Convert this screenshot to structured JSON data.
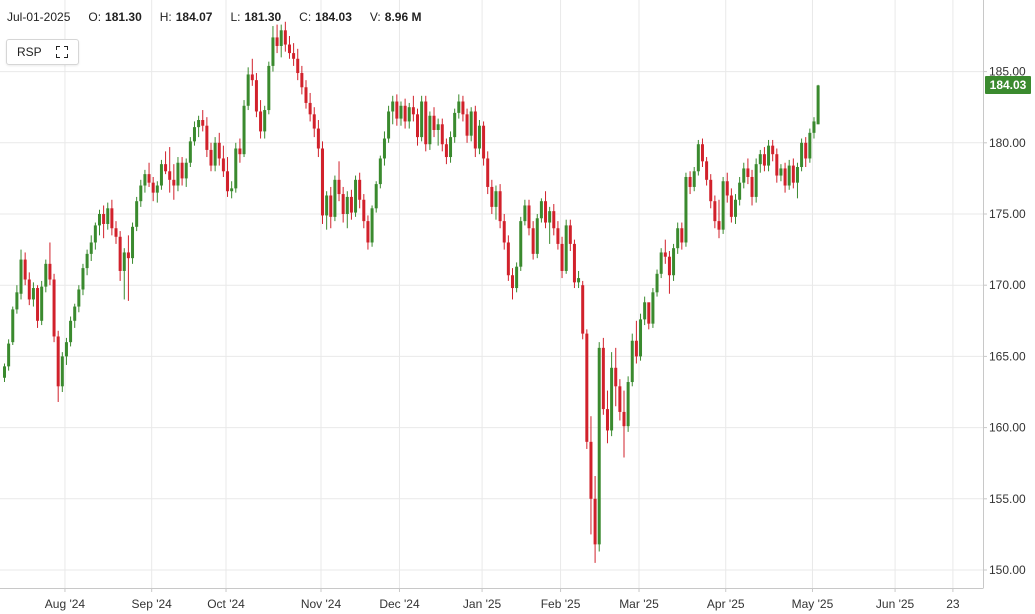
{
  "header": {
    "date": "Jul-01-2025",
    "open_label": "O:",
    "open": "181.30",
    "high_label": "H:",
    "high": "184.07",
    "low_label": "L:",
    "low": "181.30",
    "close_label": "C:",
    "close": "184.03",
    "volume_label": "V:",
    "volume": "8.96 M"
  },
  "symbol": "RSP",
  "icons": {
    "expand": "expand-icon"
  },
  "last_price_tag": "184.03",
  "colors": {
    "up": "#3a8a2e",
    "down": "#d1212b",
    "grid": "#e9e9e9",
    "axis": "#c8c8c8"
  },
  "chart_data": {
    "type": "candlestick",
    "y_range": [
      149,
      189
    ],
    "y_ticks": [
      150,
      155,
      160,
      165,
      170,
      175,
      180,
      185
    ],
    "y_tick_labels": [
      "150.00",
      "155.00",
      "160.00",
      "165.00",
      "170.00",
      "175.00",
      "180.00",
      "185.00"
    ],
    "x_tick_labels": [
      "Aug '24",
      "Sep '24",
      "Oct '24",
      "Nov '24",
      "Dec '24",
      "Jan '25",
      "Feb '25",
      "Mar '25",
      "Apr '25",
      "May '25",
      "Jun '25",
      "23"
    ],
    "x_tick_index": [
      15,
      36,
      54,
      77,
      96,
      116,
      135,
      154,
      175,
      196,
      216,
      230
    ],
    "last_close": 184.03,
    "candles": [
      [
        163.5,
        164.5,
        163.2,
        164.3
      ],
      [
        164.3,
        166.2,
        164.0,
        165.9
      ],
      [
        166.0,
        168.5,
        165.8,
        168.3
      ],
      [
        168.3,
        170.0,
        168.0,
        169.5
      ],
      [
        169.4,
        172.5,
        169.0,
        171.8
      ],
      [
        171.8,
        172.3,
        170.0,
        170.4
      ],
      [
        170.4,
        170.9,
        168.6,
        169.0
      ],
      [
        169.0,
        170.2,
        168.5,
        169.8
      ],
      [
        169.8,
        170.0,
        167.0,
        167.5
      ],
      [
        167.5,
        170.3,
        167.2,
        169.9
      ],
      [
        169.9,
        171.8,
        169.5,
        171.5
      ],
      [
        171.5,
        173.0,
        170.0,
        170.4
      ],
      [
        170.4,
        170.8,
        166.0,
        166.4
      ],
      [
        166.4,
        166.8,
        161.8,
        162.9
      ],
      [
        162.9,
        165.3,
        162.5,
        165.0
      ],
      [
        165.0,
        166.3,
        164.4,
        166.0
      ],
      [
        166.0,
        167.8,
        165.7,
        167.5
      ],
      [
        167.5,
        168.7,
        167.0,
        168.5
      ],
      [
        168.5,
        170.0,
        168.1,
        169.7
      ],
      [
        169.7,
        171.5,
        169.3,
        171.2
      ],
      [
        171.2,
        172.5,
        170.7,
        172.2
      ],
      [
        172.2,
        173.5,
        171.7,
        173.0
      ],
      [
        173.0,
        174.4,
        172.5,
        174.2
      ],
      [
        174.2,
        175.3,
        173.5,
        175.0
      ],
      [
        175.0,
        175.6,
        173.3,
        174.3
      ],
      [
        174.3,
        175.8,
        173.9,
        175.4
      ],
      [
        175.4,
        176.0,
        173.5,
        174.0
      ],
      [
        174.0,
        174.5,
        172.9,
        173.4
      ],
      [
        173.4,
        173.8,
        170.3,
        171.0
      ],
      [
        171.0,
        172.6,
        169.0,
        172.3
      ],
      [
        172.3,
        173.5,
        168.9,
        171.9
      ],
      [
        171.9,
        174.4,
        171.5,
        174.1
      ],
      [
        174.1,
        176.2,
        173.8,
        175.9
      ],
      [
        175.9,
        177.4,
        175.5,
        177.0
      ],
      [
        177.0,
        178.1,
        176.5,
        177.8
      ],
      [
        177.8,
        178.6,
        176.9,
        177.2
      ],
      [
        177.2,
        177.6,
        175.9,
        176.5
      ],
      [
        176.5,
        177.3,
        175.8,
        177.0
      ],
      [
        177.0,
        178.8,
        176.7,
        178.5
      ],
      [
        178.5,
        179.4,
        177.8,
        178.0
      ],
      [
        178.0,
        179.7,
        176.5,
        177.4
      ],
      [
        177.4,
        178.5,
        176.0,
        177.0
      ],
      [
        177.0,
        179.0,
        176.6,
        178.6
      ],
      [
        178.6,
        179.0,
        177.0,
        177.5
      ],
      [
        177.5,
        178.9,
        176.9,
        178.6
      ],
      [
        178.6,
        180.4,
        178.3,
        180.1
      ],
      [
        180.1,
        181.5,
        179.8,
        181.1
      ],
      [
        181.1,
        181.9,
        180.4,
        181.6
      ],
      [
        181.6,
        182.3,
        180.8,
        181.2
      ],
      [
        181.2,
        181.8,
        179.0,
        179.5
      ],
      [
        179.5,
        180.0,
        178.0,
        178.4
      ],
      [
        178.4,
        180.4,
        178.0,
        180.0
      ],
      [
        180.0,
        180.7,
        178.4,
        178.9
      ],
      [
        178.9,
        179.8,
        177.6,
        178.0
      ],
      [
        178.0,
        179.0,
        176.2,
        176.6
      ],
      [
        176.6,
        177.3,
        176.1,
        176.8
      ],
      [
        176.8,
        180.0,
        176.5,
        179.6
      ],
      [
        179.6,
        180.3,
        178.6,
        179.2
      ],
      [
        179.2,
        183.0,
        179.0,
        182.6
      ],
      [
        182.6,
        185.3,
        182.3,
        184.8
      ],
      [
        184.8,
        185.9,
        184.0,
        184.4
      ],
      [
        184.4,
        184.9,
        181.8,
        182.2
      ],
      [
        182.2,
        183.0,
        180.3,
        180.8
      ],
      [
        180.8,
        182.6,
        180.3,
        182.3
      ],
      [
        182.3,
        185.7,
        182.0,
        185.4
      ],
      [
        185.4,
        188.2,
        185.0,
        187.4
      ],
      [
        187.4,
        188.3,
        186.3,
        186.8
      ],
      [
        186.8,
        188.3,
        186.0,
        187.9
      ],
      [
        187.9,
        188.5,
        186.4,
        186.9
      ],
      [
        186.9,
        187.5,
        185.9,
        186.3
      ],
      [
        186.3,
        187.0,
        185.4,
        185.9
      ],
      [
        185.9,
        186.6,
        184.4,
        184.9
      ],
      [
        184.9,
        185.4,
        183.4,
        183.9
      ],
      [
        183.9,
        184.4,
        182.4,
        182.8
      ],
      [
        182.8,
        183.5,
        181.5,
        182.0
      ],
      [
        182.0,
        182.5,
        180.4,
        181.0
      ],
      [
        181.0,
        181.6,
        179.0,
        179.6
      ],
      [
        179.6,
        180.1,
        174.3,
        174.9
      ],
      [
        174.9,
        176.6,
        173.9,
        176.3
      ],
      [
        176.3,
        176.9,
        174.0,
        174.8
      ],
      [
        174.8,
        177.7,
        174.5,
        177.4
      ],
      [
        177.4,
        178.7,
        175.9,
        176.4
      ],
      [
        176.4,
        176.9,
        174.4,
        175.0
      ],
      [
        175.0,
        176.6,
        174.0,
        176.2
      ],
      [
        176.2,
        176.7,
        174.6,
        175.1
      ],
      [
        175.1,
        177.7,
        174.8,
        177.4
      ],
      [
        177.4,
        177.9,
        175.4,
        176.0
      ],
      [
        176.0,
        176.4,
        174.0,
        174.5
      ],
      [
        174.5,
        174.9,
        172.5,
        173.0
      ],
      [
        173.0,
        175.6,
        172.7,
        175.4
      ],
      [
        175.4,
        177.3,
        175.1,
        177.1
      ],
      [
        177.1,
        179.1,
        176.8,
        178.9
      ],
      [
        178.9,
        180.8,
        178.4,
        180.3
      ],
      [
        180.3,
        182.6,
        180.0,
        182.2
      ],
      [
        182.2,
        183.3,
        181.3,
        182.9
      ],
      [
        182.9,
        183.4,
        181.2,
        181.7
      ],
      [
        181.7,
        182.9,
        181.2,
        182.6
      ],
      [
        182.6,
        183.1,
        181.0,
        181.5
      ],
      [
        181.5,
        182.8,
        181.0,
        182.5
      ],
      [
        182.5,
        183.3,
        181.5,
        182.0
      ],
      [
        182.0,
        182.4,
        179.8,
        180.4
      ],
      [
        180.4,
        183.3,
        180.1,
        182.9
      ],
      [
        182.9,
        183.3,
        179.4,
        179.9
      ],
      [
        179.9,
        182.2,
        179.5,
        181.9
      ],
      [
        181.9,
        182.5,
        180.4,
        180.9
      ],
      [
        180.9,
        181.7,
        179.8,
        181.3
      ],
      [
        181.3,
        181.7,
        179.4,
        179.9
      ],
      [
        179.9,
        180.3,
        178.5,
        179.0
      ],
      [
        179.0,
        180.8,
        178.6,
        180.4
      ],
      [
        180.4,
        182.4,
        180.0,
        182.1
      ],
      [
        182.1,
        183.4,
        181.7,
        182.9
      ],
      [
        182.9,
        183.3,
        181.5,
        182.0
      ],
      [
        182.0,
        182.4,
        180.0,
        180.5
      ],
      [
        180.5,
        182.5,
        180.1,
        182.2
      ],
      [
        182.2,
        182.6,
        179.0,
        179.6
      ],
      [
        179.6,
        181.6,
        179.2,
        181.2
      ],
      [
        181.2,
        181.5,
        178.4,
        178.9
      ],
      [
        178.9,
        179.4,
        176.4,
        176.9
      ],
      [
        176.9,
        177.4,
        175.0,
        175.5
      ],
      [
        175.5,
        177.0,
        174.6,
        176.6
      ],
      [
        176.6,
        177.1,
        174.0,
        174.5
      ],
      [
        174.5,
        175.0,
        172.5,
        173.0
      ],
      [
        173.0,
        173.5,
        170.3,
        170.7
      ],
      [
        170.7,
        171.2,
        169.0,
        169.8
      ],
      [
        169.8,
        171.6,
        169.5,
        171.3
      ],
      [
        171.3,
        174.8,
        171.0,
        174.5
      ],
      [
        174.5,
        176.0,
        174.2,
        175.6
      ],
      [
        175.6,
        176.0,
        173.5,
        174.0
      ],
      [
        174.0,
        174.5,
        171.8,
        172.2
      ],
      [
        172.2,
        175.0,
        171.9,
        174.7
      ],
      [
        174.7,
        176.1,
        174.4,
        175.9
      ],
      [
        175.9,
        176.6,
        174.0,
        174.4
      ],
      [
        174.4,
        175.5,
        172.9,
        175.2
      ],
      [
        175.2,
        175.7,
        173.5,
        174.0
      ],
      [
        174.0,
        174.5,
        172.5,
        172.9
      ],
      [
        172.9,
        173.4,
        170.5,
        171.0
      ],
      [
        171.0,
        174.6,
        170.8,
        174.2
      ],
      [
        174.2,
        174.6,
        172.4,
        172.9
      ],
      [
        172.9,
        173.2,
        169.8,
        170.2
      ],
      [
        170.2,
        171.0,
        169.8,
        170.5
      ],
      [
        170.0,
        170.3,
        166.2,
        166.6
      ],
      [
        166.6,
        166.9,
        158.5,
        159.0
      ],
      [
        159.0,
        160.8,
        152.5,
        155.0
      ],
      [
        155.0,
        156.6,
        150.5,
        151.8
      ],
      [
        151.8,
        166.0,
        151.3,
        165.6
      ],
      [
        165.6,
        166.3,
        160.9,
        161.3
      ],
      [
        161.3,
        162.6,
        158.9,
        159.8
      ],
      [
        159.8,
        165.3,
        159.4,
        164.2
      ],
      [
        164.2,
        165.6,
        161.5,
        162.9
      ],
      [
        162.9,
        163.4,
        160.5,
        161.1
      ],
      [
        161.1,
        162.6,
        157.9,
        160.1
      ],
      [
        160.1,
        163.6,
        159.7,
        163.2
      ],
      [
        163.2,
        166.6,
        162.9,
        166.1
      ],
      [
        166.1,
        167.5,
        164.5,
        165.0
      ],
      [
        165.0,
        168.0,
        164.7,
        167.6
      ],
      [
        167.6,
        169.2,
        167.2,
        168.8
      ],
      [
        168.8,
        168.7,
        166.9,
        167.3
      ],
      [
        167.3,
        169.8,
        167.0,
        169.5
      ],
      [
        169.5,
        171.1,
        169.2,
        170.8
      ],
      [
        170.8,
        172.6,
        170.5,
        172.3
      ],
      [
        172.3,
        173.2,
        171.5,
        172.0
      ],
      [
        172.0,
        172.4,
        169.4,
        170.7
      ],
      [
        170.7,
        172.9,
        170.3,
        172.6
      ],
      [
        172.6,
        174.4,
        172.2,
        174.0
      ],
      [
        174.0,
        174.4,
        172.5,
        173.0
      ],
      [
        173.0,
        177.9,
        172.7,
        177.6
      ],
      [
        177.6,
        178.0,
        176.4,
        176.9
      ],
      [
        176.9,
        178.3,
        176.6,
        178.0
      ],
      [
        178.0,
        180.2,
        177.7,
        179.9
      ],
      [
        179.9,
        180.3,
        178.3,
        178.7
      ],
      [
        178.7,
        179.0,
        177.0,
        177.4
      ],
      [
        177.4,
        177.8,
        175.4,
        175.9
      ],
      [
        175.9,
        176.3,
        174.0,
        174.5
      ],
      [
        174.5,
        176.0,
        173.3,
        173.9
      ],
      [
        173.9,
        177.6,
        173.6,
        177.3
      ],
      [
        177.3,
        177.9,
        175.8,
        176.3
      ],
      [
        176.3,
        176.8,
        174.4,
        174.8
      ],
      [
        174.8,
        176.4,
        174.3,
        176.0
      ],
      [
        176.0,
        177.6,
        175.6,
        177.2
      ],
      [
        177.2,
        178.6,
        176.8,
        178.2
      ],
      [
        178.2,
        178.9,
        177.1,
        177.6
      ],
      [
        177.6,
        178.1,
        175.6,
        176.2
      ],
      [
        176.2,
        178.9,
        175.8,
        178.5
      ],
      [
        178.5,
        179.5,
        177.9,
        179.2
      ],
      [
        179.2,
        179.7,
        178.0,
        178.4
      ],
      [
        178.4,
        180.2,
        178.0,
        179.8
      ],
      [
        179.8,
        180.2,
        178.7,
        179.2
      ],
      [
        179.2,
        179.6,
        177.2,
        177.7
      ],
      [
        177.7,
        178.5,
        177.3,
        178.2
      ],
      [
        178.2,
        178.6,
        176.5,
        177.0
      ],
      [
        177.0,
        178.8,
        176.7,
        178.4
      ],
      [
        178.4,
        178.9,
        176.8,
        177.2
      ],
      [
        177.2,
        178.6,
        176.1,
        178.3
      ],
      [
        178.3,
        180.3,
        178.0,
        180.0
      ],
      [
        180.0,
        180.4,
        178.3,
        178.9
      ],
      [
        178.9,
        181.0,
        178.6,
        180.7
      ],
      [
        180.7,
        181.8,
        180.3,
        181.5
      ],
      [
        181.3,
        184.07,
        181.3,
        184.03
      ]
    ]
  }
}
